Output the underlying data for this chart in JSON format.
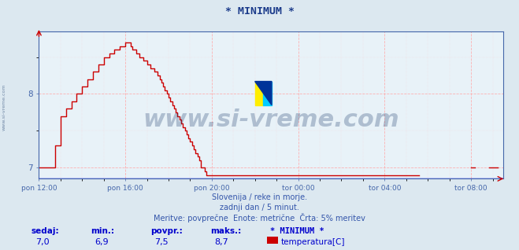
{
  "title": "* MINIMUM *",
  "title_color": "#1a3a8a",
  "title_fontsize": 9.5,
  "bg_color": "#dce8f0",
  "plot_bg_color": "#e8f2f8",
  "line_color": "#cc0000",
  "line_width": 1.0,
  "y_label_color": "#4466aa",
  "x_label_color": "#3355aa",
  "watermark_text": "www.si-vreme.com",
  "watermark_color": "#1a3a6a",
  "watermark_alpha": 0.28,
  "watermark_fontsize": 22,
  "grid_color": "#ffaaaa",
  "grid_minor_color": "#ffcccc",
  "axis_color": "#4466aa",
  "bottom_line1": "Slovenija / reke in morje.",
  "bottom_line2": "zadnji dan / 5 minut.",
  "bottom_line3": "Meritve: povprečne  Enote: metrične  Črta: 5% meritev",
  "bottom_color": "#3355aa",
  "bottom_fontsize": 7,
  "stat_labels": [
    "sedaj:",
    "min.:",
    "povpr.:",
    "maks.:"
  ],
  "stat_values": [
    "7,0",
    "6,9",
    "7,5",
    "8,7"
  ],
  "legend_title": "* MINIMUM *",
  "legend_label": "temperatura[C]",
  "legend_color": "#cc0000",
  "stat_color": "#0000cc",
  "stat_fontsize": 7.5,
  "ylim": [
    6.85,
    8.85
  ],
  "yticks": [
    7.0,
    8.0
  ],
  "xlim_hours": [
    0,
    21.5
  ],
  "xtick_positions": [
    0,
    4,
    8,
    12,
    16,
    20
  ],
  "xtick_labels": [
    "pon 12:00",
    "pon 16:00",
    "pon 20:00",
    "tor 00:00",
    "tor 04:00",
    "tor 08:00"
  ]
}
